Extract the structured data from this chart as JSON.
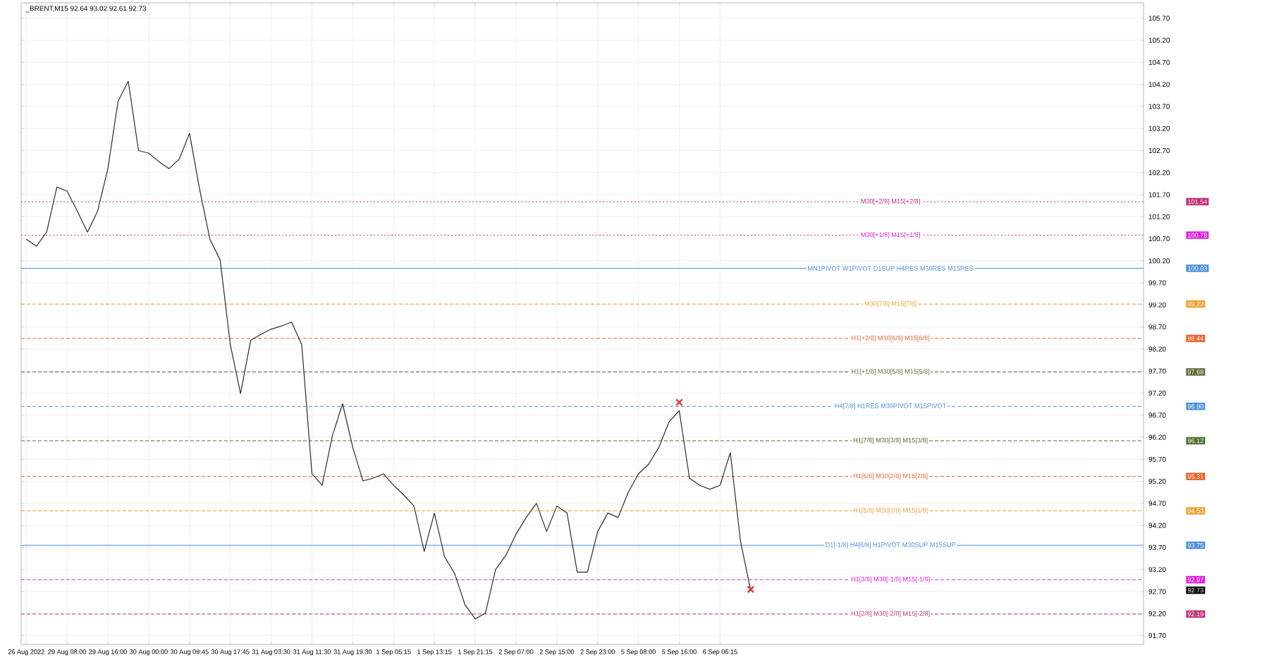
{
  "chart_data": {
    "type": "line",
    "title": "_BRENT,M15  92.64 93.02 92.61 92.73",
    "categories": [
      "26 Aug 2022",
      null,
      null,
      null,
      "29 Aug 08:00",
      null,
      null,
      null,
      "29 Aug 16:00",
      null,
      null,
      null,
      "30 Aug 00:00",
      null,
      null,
      null,
      "30 Aug 09:45",
      null,
      null,
      null,
      "30 Aug 17:45",
      null,
      null,
      null,
      "31 Aug 03:30",
      null,
      null,
      null,
      "31 Aug 11:30",
      null,
      null,
      null,
      "31 Aug 19:30",
      null,
      null,
      null,
      "1 Sep 05:15",
      null,
      null,
      null,
      "1 Sep 13:15",
      null,
      null,
      null,
      "1 Sep 21:15",
      null,
      null,
      null,
      "2 Sep 07:00",
      null,
      null,
      null,
      "2 Sep 15:00",
      null,
      null,
      null,
      "2 Sep 23:00",
      null,
      null,
      null,
      "5 Sep 08:00",
      null,
      null,
      null,
      "5 Sep 16:00",
      null,
      null,
      null,
      "6 Sep 06:15",
      null,
      null,
      null,
      null,
      null,
      null,
      null,
      null,
      null,
      null,
      null,
      null,
      null,
      null,
      null,
      null,
      null,
      null,
      null,
      null,
      null,
      null,
      null,
      null,
      null,
      null,
      null,
      null,
      null,
      null,
      null,
      null,
      null,
      null,
      null,
      null,
      null,
      null,
      null,
      null,
      null
    ],
    "series": [
      {
        "color": "#2b2b2b",
        "values": [
          100.69,
          100.53,
          100.85,
          101.87,
          101.78,
          101.33,
          100.85,
          101.33,
          102.29,
          103.82,
          104.27,
          102.7,
          102.64,
          102.45,
          102.29,
          102.51,
          103.09,
          101.81,
          100.69,
          100.22,
          98.3,
          97.19,
          98.4,
          98.53,
          98.65,
          98.72,
          98.81,
          98.3,
          95.37,
          95.11,
          96.23,
          96.96,
          95.97,
          95.21,
          95.27,
          95.37,
          95.11,
          94.89,
          94.64,
          93.61,
          94.48,
          93.49,
          93.1,
          92.4,
          92.08,
          92.21,
          93.2,
          93.52,
          94.0,
          94.38,
          94.7,
          94.06,
          94.64,
          94.48,
          93.14,
          93.14,
          94.06,
          94.48,
          94.38,
          94.95,
          95.37,
          95.59,
          95.97,
          96.55,
          96.8,
          95.27,
          95.11,
          95.02,
          95.11,
          95.85,
          93.84,
          92.73,
          null,
          null,
          null,
          null,
          null,
          null,
          null,
          null,
          null,
          null,
          null,
          null,
          null,
          null,
          null,
          null,
          null,
          null,
          null,
          null,
          null,
          null,
          null,
          null,
          null,
          null,
          null,
          null,
          null,
          null,
          null,
          null,
          null,
          null,
          null,
          null,
          null,
          null
        ]
      },
      {
        "type": "scatter",
        "color": "#e03c3c",
        "marker": "cross",
        "values": [
          null,
          null,
          null,
          null,
          null,
          null,
          null,
          null,
          null,
          null,
          null,
          null,
          null,
          null,
          null,
          null,
          null,
          null,
          null,
          null,
          null,
          null,
          null,
          null,
          null,
          null,
          null,
          null,
          null,
          null,
          null,
          null,
          null,
          null,
          null,
          null,
          null,
          null,
          null,
          null,
          null,
          null,
          null,
          null,
          null,
          null,
          null,
          null,
          null,
          null,
          null,
          null,
          null,
          null,
          null,
          null,
          null,
          null,
          null,
          null,
          null,
          null,
          null,
          null,
          96.99,
          null,
          null,
          null,
          null,
          null,
          null,
          92.75,
          null,
          null,
          null,
          null,
          null,
          null,
          null,
          null,
          null,
          null,
          null,
          null,
          null,
          null,
          null,
          null,
          null,
          null,
          null,
          null,
          null,
          null,
          null,
          null,
          null,
          null,
          null,
          null,
          null,
          null,
          null,
          null,
          null,
          null,
          null,
          null,
          null,
          null
        ]
      }
    ],
    "ylim": [
      91.5,
      106.05
    ],
    "yticks": [
      {
        "value": 91.7,
        "label": "91.70"
      },
      {
        "value": 92.2,
        "label": "92.20"
      },
      {
        "value": 92.7,
        "label": "92.70"
      },
      {
        "value": 93.2,
        "label": "93.20"
      },
      {
        "value": 93.7,
        "label": "93.70"
      },
      {
        "value": 94.2,
        "label": "94.20"
      },
      {
        "value": 94.7,
        "label": "94.70"
      },
      {
        "value": 95.2,
        "label": "95.20"
      },
      {
        "value": 95.7,
        "label": "95.70"
      },
      {
        "value": 96.2,
        "label": "96.20"
      },
      {
        "value": 96.7,
        "label": "96.70"
      },
      {
        "value": 97.2,
        "label": "97.20"
      },
      {
        "value": 97.7,
        "label": "97.70"
      },
      {
        "value": 98.2,
        "label": "98.20"
      },
      {
        "value": 98.7,
        "label": "98.70"
      },
      {
        "value": 99.2,
        "label": "99.20"
      },
      {
        "value": 99.7,
        "label": "99.70"
      },
      {
        "value": 100.2,
        "label": "100.20"
      },
      {
        "value": 100.7,
        "label": "100.70"
      },
      {
        "value": 101.2,
        "label": "101.20"
      },
      {
        "value": 101.7,
        "label": "101.70"
      },
      {
        "value": 102.2,
        "label": "102.20"
      },
      {
        "value": 102.7,
        "label": "102.70"
      },
      {
        "value": 103.2,
        "label": "103.20"
      },
      {
        "value": 103.7,
        "label": "103.70"
      },
      {
        "value": 104.2,
        "label": "104.20"
      },
      {
        "value": 104.7,
        "label": "104.70"
      },
      {
        "value": 105.2,
        "label": "105.20"
      },
      {
        "value": 105.7,
        "label": "105.70"
      }
    ],
    "grid": true,
    "ref_lines": [
      {
        "axis": "y",
        "value": 101.54,
        "label": "M30[+2/8] M15[+2/8]",
        "color": "#c0307a",
        "line_style": "dotted"
      },
      {
        "axis": "y",
        "value": 100.78,
        "label": "M30[+1/8] M15[+1/8]",
        "color": "#e020e0",
        "line_style": "dotted"
      },
      {
        "axis": "y",
        "value": 100.03,
        "label": "MN1PIVOT W1PIVOT D1SUP H4RES M30RES M15RES",
        "color": "#4a90d9",
        "line_style": "solid"
      },
      {
        "axis": "y",
        "value": 99.22,
        "label": "M30[7/8] M15[7/8]",
        "color": "#f0a030",
        "line_style": "dashed"
      },
      {
        "axis": "y",
        "value": 98.44,
        "label": "H1[+2/8] M30[6/8] M15[6/8]",
        "color": "#e8642a",
        "line_style": "dashed"
      },
      {
        "axis": "y",
        "value": 97.68,
        "label": "H1[+1/8] M30[5/8] M15[5/8]",
        "color": "#5f6b35",
        "line_style": "dashed"
      },
      {
        "axis": "y",
        "value": 96.9,
        "label": "H4[7/8] H1RES M30PIVOT M15PIVOT",
        "color": "#4a90d9",
        "line_style": "dashed"
      },
      {
        "axis": "y",
        "value": 96.12,
        "label": "H1[7/8] M30[3/8] M15[3/8]",
        "color": "#556b2f",
        "line_style": "dashed"
      },
      {
        "axis": "y",
        "value": 95.31,
        "label": "H1[6/8] M30[2/8] M15[2/8]",
        "color": "#e8642a",
        "line_style": "dashed"
      },
      {
        "axis": "y",
        "value": 94.53,
        "label": "H1[5/8] M30[1/8] M15[1/8]",
        "color": "#f0a030",
        "line_style": "dashed"
      },
      {
        "axis": "y",
        "value": 93.75,
        "label": "D1[-1/8] H4[6/8] H1PIVOT M30SUP M15SUP",
        "color": "#4a90d9",
        "line_style": "solid"
      },
      {
        "axis": "y",
        "value": 92.97,
        "label": "H1[3/8] M30[-1/8] M15[-1/8]",
        "color": "#e020e0",
        "line_style": "dashed"
      },
      {
        "axis": "y",
        "value": 92.19,
        "label": "H1[2/8] M30[-2/8] M15[-2/8]",
        "color": "#c0307a",
        "line_style": "dashed"
      }
    ],
    "annotations": [
      "101.54",
      "100.78",
      "100.03",
      "99.22",
      "98.44",
      "97.68",
      "96.90",
      "96.12",
      "95.31",
      "94.53",
      "93.75",
      "92.97",
      "92.19",
      "92.73"
    ]
  }
}
